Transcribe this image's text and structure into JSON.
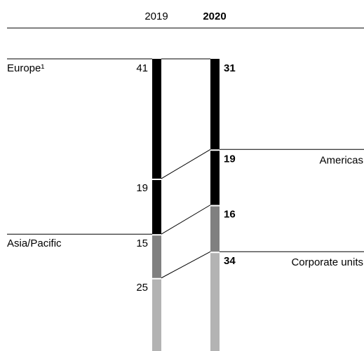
{
  "chart_data": {
    "type": "bar",
    "stacked": true,
    "percent_scale": true,
    "categories": [
      "2019",
      "2020"
    ],
    "series": [
      {
        "name": "Europe¹",
        "values": [
          41,
          31
        ],
        "color": "#000000"
      },
      {
        "name": "Americas",
        "values": [
          19,
          19
        ],
        "color": "#000000"
      },
      {
        "name": "Asia/Pacific",
        "values": [
          15,
          16
        ],
        "color": "#808080"
      },
      {
        "name": "Corporate units",
        "values": [
          25,
          34
        ],
        "color": "#b3b3b3"
      }
    ],
    "segment_separators": "white",
    "connector_lines": true
  }
}
